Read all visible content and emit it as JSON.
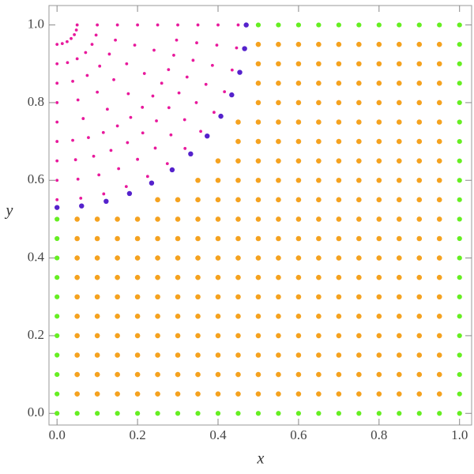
{
  "chart_data": {
    "type": "scatter",
    "xlabel": "x",
    "ylabel": "y",
    "xlim": [
      -0.02,
      1.03
    ],
    "ylim": [
      -0.03,
      1.05
    ],
    "xticks": [
      {
        "value": 0,
        "label": "0.0"
      },
      {
        "value": 0.2,
        "label": "0.2"
      },
      {
        "value": 0.4,
        "label": "0.4"
      },
      {
        "value": 0.6,
        "label": "0.6"
      },
      {
        "value": 0.8,
        "label": "0.8"
      },
      {
        "value": 1,
        "label": "1.0"
      }
    ],
    "yticks": [
      {
        "value": 0,
        "label": "0.0"
      },
      {
        "value": 0.2,
        "label": "0.2"
      },
      {
        "value": 0.4,
        "label": "0.4"
      },
      {
        "value": 0.6,
        "label": "0.6"
      },
      {
        "value": 0.8,
        "label": "0.8"
      },
      {
        "value": 1,
        "label": "1.0"
      }
    ],
    "series": [
      {
        "color": "#f5a21f",
        "x": [
          0.05,
          0.1,
          0.15,
          0.2,
          0.25,
          0.3,
          0.35,
          0.4,
          0.45,
          0.5,
          0.55,
          0.6,
          0.65,
          0.7,
          0.75,
          0.8,
          0.85,
          0.9,
          0.95,
          0.05,
          0.1,
          0.15,
          0.2,
          0.25,
          0.3,
          0.35,
          0.4,
          0.45,
          0.5,
          0.55,
          0.6,
          0.65,
          0.7,
          0.75,
          0.8,
          0.85,
          0.9,
          0.95,
          0.05,
          0.1,
          0.15,
          0.2,
          0.25,
          0.3,
          0.35,
          0.4,
          0.45,
          0.5,
          0.55,
          0.6,
          0.65,
          0.7,
          0.75,
          0.8,
          0.85,
          0.9,
          0.95,
          0.05,
          0.1,
          0.15,
          0.2,
          0.25,
          0.3,
          0.35,
          0.4,
          0.45,
          0.5,
          0.55,
          0.6,
          0.65,
          0.7,
          0.75,
          0.8,
          0.85,
          0.9,
          0.95,
          0.05,
          0.1,
          0.15,
          0.2,
          0.25,
          0.3,
          0.35,
          0.4,
          0.45,
          0.5,
          0.55,
          0.6,
          0.65,
          0.7,
          0.75,
          0.8,
          0.85,
          0.9,
          0.95,
          0.05,
          0.1,
          0.15,
          0.2,
          0.25,
          0.3,
          0.35,
          0.4,
          0.45,
          0.5,
          0.55,
          0.6,
          0.65,
          0.7,
          0.75,
          0.8,
          0.85,
          0.9,
          0.95,
          0.05,
          0.1,
          0.15,
          0.2,
          0.25,
          0.3,
          0.35,
          0.4,
          0.45,
          0.5,
          0.55,
          0.6,
          0.65,
          0.7,
          0.75,
          0.8,
          0.85,
          0.9,
          0.95,
          0.05,
          0.1,
          0.15,
          0.2,
          0.25,
          0.3,
          0.35,
          0.4,
          0.45,
          0.5,
          0.55,
          0.6,
          0.65,
          0.7,
          0.75,
          0.8,
          0.85,
          0.9,
          0.95,
          0.05,
          0.1,
          0.15,
          0.2,
          0.25,
          0.3,
          0.35,
          0.4,
          0.45,
          0.5,
          0.55,
          0.6,
          0.65,
          0.7,
          0.75,
          0.8,
          0.85,
          0.9,
          0.95,
          0.05,
          0.1,
          0.15,
          0.2,
          0.25,
          0.3,
          0.35,
          0.4,
          0.45,
          0.5,
          0.55,
          0.6,
          0.65,
          0.7,
          0.75,
          0.8,
          0.85,
          0.9,
          0.95,
          0.25,
          0.3,
          0.35,
          0.4,
          0.45,
          0.5,
          0.55,
          0.6,
          0.65,
          0.7,
          0.75,
          0.8,
          0.85,
          0.9,
          0.95,
          0.35,
          0.4,
          0.45,
          0.5,
          0.55,
          0.6,
          0.65,
          0.7,
          0.75,
          0.8,
          0.85,
          0.9,
          0.95,
          0.4,
          0.45,
          0.5,
          0.55,
          0.6,
          0.65,
          0.7,
          0.75,
          0.8,
          0.85,
          0.9,
          0.95,
          0.45,
          0.5,
          0.55,
          0.6,
          0.65,
          0.7,
          0.75,
          0.8,
          0.85,
          0.9,
          0.95,
          0.45,
          0.5,
          0.55,
          0.6,
          0.65,
          0.7,
          0.75,
          0.8,
          0.85,
          0.9,
          0.95,
          0.5,
          0.55,
          0.6,
          0.65,
          0.7,
          0.75,
          0.8,
          0.85,
          0.9,
          0.95,
          0.5,
          0.55,
          0.6,
          0.65,
          0.7,
          0.75,
          0.8,
          0.85,
          0.9,
          0.95,
          0.5,
          0.55,
          0.6,
          0.65,
          0.7,
          0.75,
          0.8,
          0.85,
          0.9,
          0.95,
          0.5,
          0.55,
          0.6,
          0.65,
          0.7,
          0.75,
          0.8,
          0.85,
          0.9,
          0.95
        ],
        "values": [
          0.05,
          0.05,
          0.05,
          0.05,
          0.05,
          0.05,
          0.05,
          0.05,
          0.05,
          0.05,
          0.05,
          0.05,
          0.05,
          0.05,
          0.05,
          0.05,
          0.05,
          0.05,
          0.05,
          0.1,
          0.1,
          0.1,
          0.1,
          0.1,
          0.1,
          0.1,
          0.1,
          0.1,
          0.1,
          0.1,
          0.1,
          0.1,
          0.1,
          0.1,
          0.1,
          0.1,
          0.1,
          0.1,
          0.15,
          0.15,
          0.15,
          0.15,
          0.15,
          0.15,
          0.15,
          0.15,
          0.15,
          0.15,
          0.15,
          0.15,
          0.15,
          0.15,
          0.15,
          0.15,
          0.15,
          0.15,
          0.15,
          0.2,
          0.2,
          0.2,
          0.2,
          0.2,
          0.2,
          0.2,
          0.2,
          0.2,
          0.2,
          0.2,
          0.2,
          0.2,
          0.2,
          0.2,
          0.2,
          0.2,
          0.2,
          0.2,
          0.25,
          0.25,
          0.25,
          0.25,
          0.25,
          0.25,
          0.25,
          0.25,
          0.25,
          0.25,
          0.25,
          0.25,
          0.25,
          0.25,
          0.25,
          0.25,
          0.25,
          0.25,
          0.25,
          0.3,
          0.3,
          0.3,
          0.3,
          0.3,
          0.3,
          0.3,
          0.3,
          0.3,
          0.3,
          0.3,
          0.3,
          0.3,
          0.3,
          0.3,
          0.3,
          0.3,
          0.3,
          0.3,
          0.35,
          0.35,
          0.35,
          0.35,
          0.35,
          0.35,
          0.35,
          0.35,
          0.35,
          0.35,
          0.35,
          0.35,
          0.35,
          0.35,
          0.35,
          0.35,
          0.35,
          0.35,
          0.35,
          0.4,
          0.4,
          0.4,
          0.4,
          0.4,
          0.4,
          0.4,
          0.4,
          0.4,
          0.4,
          0.4,
          0.4,
          0.4,
          0.4,
          0.4,
          0.4,
          0.4,
          0.4,
          0.4,
          0.45,
          0.45,
          0.45,
          0.45,
          0.45,
          0.45,
          0.45,
          0.45,
          0.45,
          0.45,
          0.45,
          0.45,
          0.45,
          0.45,
          0.45,
          0.45,
          0.45,
          0.45,
          0.45,
          0.5,
          0.5,
          0.5,
          0.5,
          0.5,
          0.5,
          0.5,
          0.5,
          0.5,
          0.5,
          0.5,
          0.5,
          0.5,
          0.5,
          0.5,
          0.5,
          0.5,
          0.5,
          0.5,
          0.55,
          0.55,
          0.55,
          0.55,
          0.55,
          0.55,
          0.55,
          0.55,
          0.55,
          0.55,
          0.55,
          0.55,
          0.55,
          0.55,
          0.55,
          0.6,
          0.6,
          0.6,
          0.6,
          0.6,
          0.6,
          0.6,
          0.6,
          0.6,
          0.6,
          0.6,
          0.6,
          0.6,
          0.65,
          0.65,
          0.65,
          0.65,
          0.65,
          0.65,
          0.65,
          0.65,
          0.65,
          0.65,
          0.65,
          0.65,
          0.7,
          0.7,
          0.7,
          0.7,
          0.7,
          0.7,
          0.7,
          0.7,
          0.7,
          0.7,
          0.7,
          0.75,
          0.75,
          0.75,
          0.75,
          0.75,
          0.75,
          0.75,
          0.75,
          0.75,
          0.75,
          0.75,
          0.8,
          0.8,
          0.8,
          0.8,
          0.8,
          0.8,
          0.8,
          0.8,
          0.8,
          0.8,
          0.85,
          0.85,
          0.85,
          0.85,
          0.85,
          0.85,
          0.85,
          0.85,
          0.85,
          0.85,
          0.9,
          0.9,
          0.9,
          0.9,
          0.9,
          0.9,
          0.9,
          0.9,
          0.9,
          0.9,
          0.95,
          0.95,
          0.95,
          0.95,
          0.95,
          0.95,
          0.95,
          0.95,
          0.95,
          0.95
        ]
      },
      {
        "color": "#66ee22",
        "x": [
          0,
          0,
          0,
          0,
          0,
          0,
          0,
          0,
          0,
          0,
          0,
          0.05,
          0.1,
          0.15,
          0.2,
          0.25,
          0.3,
          0.35,
          0.4,
          0.45,
          0.5,
          0.55,
          0.6,
          0.65,
          0.7,
          0.75,
          0.8,
          0.85,
          0.9,
          0.95,
          1,
          1,
          1,
          1,
          1,
          1,
          1,
          1,
          1,
          1,
          1,
          1,
          1,
          1,
          1,
          1,
          1,
          1,
          1,
          1,
          1,
          0.5,
          0.55,
          0.6,
          0.65,
          0.7,
          0.75,
          0.8,
          0.85,
          0.9,
          0.95
        ],
        "values": [
          0,
          0.05,
          0.1,
          0.15,
          0.2,
          0.25,
          0.3,
          0.35,
          0.4,
          0.45,
          0.5,
          0,
          0,
          0,
          0,
          0,
          0,
          0,
          0,
          0,
          0,
          0,
          0,
          0,
          0,
          0,
          0,
          0,
          0,
          0,
          0,
          0.05,
          0.1,
          0.15,
          0.2,
          0.25,
          0.3,
          0.35,
          0.4,
          0.45,
          0.5,
          0.55,
          0.6,
          0.65,
          0.7,
          0.75,
          0.8,
          0.85,
          0.9,
          0.95,
          1,
          1,
          1,
          1,
          1,
          1,
          1,
          1,
          1,
          1,
          1
        ]
      },
      {
        "color": "#e8199c",
        "x": [
          0.05,
          0.048,
          0.043,
          0.035,
          0.025,
          0.013,
          0,
          0.1,
          0.097,
          0.087,
          0.071,
          0.05,
          0.026,
          0,
          0.15,
          0.145,
          0.13,
          0.106,
          0.075,
          0.039,
          0,
          0.2,
          0.193,
          0.173,
          0.141,
          0.1,
          0.052,
          0,
          0.25,
          0.241,
          0.217,
          0.177,
          0.125,
          0.065,
          0,
          0.3,
          0.297,
          0.29,
          0.277,
          0.26,
          0.238,
          0.212,
          0.183,
          0.15,
          0.115,
          0.078,
          0.039,
          0,
          0.35,
          0.347,
          0.338,
          0.323,
          0.303,
          0.278,
          0.247,
          0.213,
          0.175,
          0.134,
          0.091,
          0.046,
          0,
          0.4,
          0.397,
          0.386,
          0.37,
          0.346,
          0.317,
          0.283,
          0.244,
          0.2,
          0.153,
          0.104,
          0.052,
          0,
          0.45,
          0.446,
          0.435,
          0.416,
          0.39,
          0.357,
          0.318,
          0.274,
          0.225,
          0.172,
          0.116,
          0.059,
          0
        ],
        "values": [
          1,
          0.987,
          0.975,
          0.965,
          0.957,
          0.952,
          0.95,
          1,
          0.974,
          0.95,
          0.929,
          0.913,
          0.903,
          0.9,
          1,
          0.961,
          0.925,
          0.894,
          0.87,
          0.855,
          0.85,
          1,
          0.948,
          0.9,
          0.859,
          0.827,
          0.807,
          0.8,
          1,
          0.935,
          0.875,
          0.823,
          0.783,
          0.759,
          0.75,
          1,
          0.961,
          0.922,
          0.885,
          0.85,
          0.817,
          0.788,
          0.762,
          0.74,
          0.723,
          0.71,
          0.703,
          0.7,
          1,
          0.954,
          0.909,
          0.866,
          0.825,
          0.787,
          0.753,
          0.722,
          0.697,
          0.677,
          0.662,
          0.653,
          0.65,
          1,
          0.948,
          0.896,
          0.847,
          0.8,
          0.756,
          0.717,
          0.683,
          0.654,
          0.63,
          0.614,
          0.603,
          0.6,
          1,
          0.941,
          0.884,
          0.828,
          0.775,
          0.726,
          0.682,
          0.643,
          0.61,
          0.584,
          0.565,
          0.554,
          0.55
        ]
      },
      {
        "color": "#5522cc",
        "x": [
          0.47,
          0.466,
          0.454,
          0.434,
          0.407,
          0.373,
          0.332,
          0.286,
          0.235,
          0.18,
          0.122,
          0.061,
          0
        ],
        "values": [
          1,
          0.939,
          0.878,
          0.82,
          0.765,
          0.714,
          0.668,
          0.627,
          0.593,
          0.566,
          0.546,
          0.534,
          0.53
        ]
      }
    ]
  }
}
